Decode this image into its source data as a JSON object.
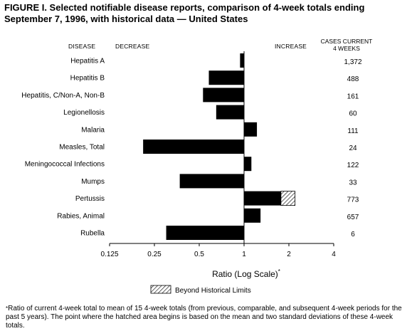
{
  "title_line1": "FIGURE I. Selected notifiable disease reports, comparison of 4-week totals ending",
  "title_line2": "September 7, 1996, with historical data — United States",
  "headers": {
    "disease": "DISEASE",
    "decrease": "DECREASE",
    "increase": "INCREASE",
    "cases_line1": "CASES CURRENT",
    "cases_line2": "4 WEEKS"
  },
  "xaxis": {
    "label": "Ratio (Log Scale)",
    "label_mark": "*",
    "scale": "log",
    "tick_labels": [
      "0.125",
      "0.25",
      "0.5",
      "1",
      "2",
      "4"
    ],
    "ticks": [
      0.125,
      0.25,
      0.5,
      1,
      2,
      4
    ]
  },
  "legend": {
    "label": "Beyond Historical Limits"
  },
  "footnote": {
    "mark": "*",
    "text": "Ratio of current 4-week total to mean of 15 4-week totals (from previous, comparable, and subsequent 4-week periods for the past 5 years). The point where the hatched area begins is based on the mean and two standard deviations of these 4-week totals."
  },
  "chart_data": {
    "type": "bar",
    "orientation": "horizontal",
    "baseline": 1,
    "xlim": [
      0.125,
      4
    ],
    "xscale": "log",
    "xlabel": "Ratio (Log Scale)",
    "colors": {
      "bar": "#000000",
      "hatch": "#000000"
    },
    "categories": [
      "Hepatitis A",
      "Hepatitis B",
      "Hepatitis, C/Non-A, Non-B",
      "Legionellosis",
      "Malaria",
      "Measles, Total",
      "Meningococcal Infections",
      "Mumps",
      "Pertussis",
      "Rabies, Animal",
      "Rubella"
    ],
    "values": [
      0.94,
      0.58,
      0.53,
      0.65,
      1.22,
      0.21,
      1.12,
      0.37,
      2.2,
      1.29,
      0.3
    ],
    "beyond_historical_limits_start": [
      null,
      null,
      null,
      null,
      null,
      null,
      null,
      null,
      1.77,
      null,
      null
    ],
    "cases_current_4_weeks": [
      "1,372",
      "488",
      "161",
      "60",
      "111",
      "24",
      "122",
      "33",
      "773",
      "657",
      "6"
    ]
  }
}
